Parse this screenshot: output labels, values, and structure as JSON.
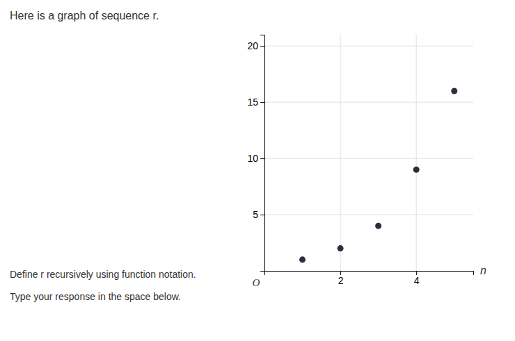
{
  "chart_data": {
    "type": "scatter",
    "title": "Here is a graph of sequence r.",
    "x_label": "n",
    "annotations": [
      "O",
      "Define r recursively using function notation.",
      "Type your response in the space below."
    ],
    "x": [
      1,
      2,
      3,
      4,
      5
    ],
    "values": [
      1,
      2,
      4,
      9,
      16
    ],
    "color": "#2d2d3d",
    "marker": "circle",
    "xlim": [
      0,
      5.5
    ],
    "ylim": [
      0,
      21
    ],
    "xticks": [
      2,
      4
    ],
    "yticks": [
      5,
      10,
      15,
      20
    ],
    "grid": true
  }
}
